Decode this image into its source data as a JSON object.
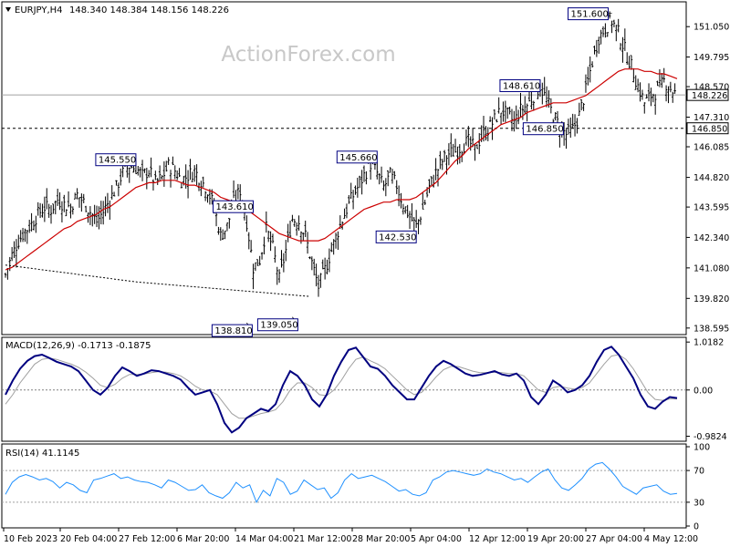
{
  "chart_data": {
    "type": "line",
    "watermark": "ActionForex.com",
    "price_panel": {
      "symbol_label": "EURJPY,H4",
      "ohlc_label": "148.340 148.384 148.156 148.226",
      "ylim": [
        138.4,
        152.0
      ],
      "y_ticks": [
        151.05,
        149.795,
        148.57,
        147.31,
        146.085,
        144.82,
        143.595,
        142.34,
        141.08,
        139.82,
        138.595
      ],
      "current_price": 148.226,
      "current_price_label": "148.226",
      "support_level": 146.85,
      "support_label": "146.850",
      "close_series": [
        140.8,
        141.6,
        142.2,
        142.6,
        142.9,
        143.3,
        143.6,
        143.5,
        143.9,
        143.7,
        143.6,
        144.1,
        143.8,
        143.4,
        143.0,
        143.4,
        143.9,
        144.4,
        145.0,
        145.3,
        145.2,
        144.9,
        145.1,
        144.6,
        144.8,
        145.3,
        145.1,
        144.7,
        144.9,
        145.1,
        144.7,
        144.3,
        143.6,
        142.4,
        142.8,
        143.8,
        144.3,
        143.0,
        141.1,
        141.4,
        142.7,
        141.9,
        140.6,
        141.8,
        143.1,
        143.0,
        142.4,
        141.3,
        140.3,
        141.0,
        141.8,
        142.6,
        143.3,
        143.9,
        144.4,
        144.9,
        145.4,
        145.0,
        144.4,
        144.9,
        144.5,
        143.7,
        143.2,
        142.8,
        143.5,
        144.4,
        145.0,
        145.5,
        145.8,
        145.9,
        146.1,
        146.3,
        146.0,
        146.5,
        146.8,
        147.2,
        147.6,
        147.4,
        147.1,
        147.6,
        147.8,
        148.2,
        148.6,
        148.0,
        147.4,
        146.9,
        146.6,
        146.8,
        147.4,
        148.4,
        149.6,
        150.6,
        151.0,
        151.3,
        150.8,
        150.1,
        149.4,
        148.6,
        147.9,
        148.2,
        148.4,
        148.8,
        148.5,
        148.2
      ],
      "ma_series": [
        141.0,
        141.1,
        141.3,
        141.5,
        141.7,
        141.9,
        142.1,
        142.3,
        142.5,
        142.7,
        142.8,
        143.0,
        143.1,
        143.2,
        143.3,
        143.5,
        143.6,
        143.8,
        144.0,
        144.2,
        144.4,
        144.5,
        144.6,
        144.6,
        144.7,
        144.7,
        144.7,
        144.6,
        144.5,
        144.5,
        144.4,
        144.3,
        144.2,
        144.0,
        143.9,
        143.8,
        143.7,
        143.5,
        143.3,
        143.1,
        142.9,
        142.7,
        142.5,
        142.4,
        142.3,
        142.2,
        142.2,
        142.2,
        142.2,
        142.3,
        142.5,
        142.7,
        142.9,
        143.1,
        143.3,
        143.5,
        143.6,
        143.7,
        143.8,
        143.8,
        143.9,
        143.9,
        143.9,
        144.0,
        144.2,
        144.4,
        144.6,
        144.9,
        145.2,
        145.5,
        145.7,
        146.0,
        146.2,
        146.4,
        146.6,
        146.8,
        147.0,
        147.1,
        147.2,
        147.3,
        147.5,
        147.6,
        147.7,
        147.8,
        147.9,
        147.9,
        147.9,
        148.0,
        148.1,
        148.2,
        148.4,
        148.6,
        148.8,
        149.0,
        149.2,
        149.3,
        149.3,
        149.3,
        149.2,
        149.2,
        149.1,
        149.1,
        149.0,
        148.9
      ],
      "long_ma_series": [
        141.2,
        140.5,
        139.9
      ],
      "annotations": [
        {
          "text": "145.550",
          "value": 145.55,
          "index": 20
        },
        {
          "text": "143.610",
          "value": 143.61,
          "index": 38
        },
        {
          "text": "138.810",
          "value": 138.81,
          "index": 37
        },
        {
          "text": "139.050",
          "value": 139.05,
          "index": 44
        },
        {
          "text": "145.660",
          "value": 145.66,
          "index": 57
        },
        {
          "text": "142.530",
          "value": 142.53,
          "index": 63
        },
        {
          "text": "148.610",
          "value": 148.61,
          "index": 82
        },
        {
          "text": "146.850",
          "value": 146.85,
          "index": 85
        },
        {
          "text": "151.600",
          "value": 151.6,
          "index": 93
        }
      ],
      "colors": {
        "bars": "#000000",
        "ma": "#cc0000",
        "long_ma": "#000000"
      }
    },
    "macd_panel": {
      "label": "MACD(12,26,9) -0.1713 -0.1875",
      "ylim": [
        -1.05,
        1.08
      ],
      "y_ticks": [
        1.0182,
        0.0,
        -0.9824
      ],
      "y_tick_labels": [
        "1.0182",
        "0.00",
        "-0.9824"
      ],
      "macd_series": [
        -0.1,
        0.2,
        0.45,
        0.62,
        0.72,
        0.75,
        0.68,
        0.6,
        0.55,
        0.5,
        0.4,
        0.2,
        0.0,
        -0.1,
        0.05,
        0.3,
        0.48,
        0.4,
        0.3,
        0.35,
        0.42,
        0.4,
        0.35,
        0.3,
        0.22,
        0.05,
        -0.1,
        -0.05,
        0.0,
        -0.3,
        -0.7,
        -0.9,
        -0.8,
        -0.6,
        -0.5,
        -0.4,
        -0.45,
        -0.3,
        0.1,
        0.4,
        0.3,
        0.1,
        -0.2,
        -0.35,
        -0.1,
        0.3,
        0.6,
        0.85,
        0.9,
        0.7,
        0.5,
        0.45,
        0.3,
        0.1,
        -0.05,
        -0.2,
        -0.2,
        0.05,
        0.3,
        0.5,
        0.62,
        0.55,
        0.45,
        0.35,
        0.3,
        0.32,
        0.36,
        0.4,
        0.33,
        0.3,
        0.35,
        0.2,
        -0.15,
        -0.3,
        -0.1,
        0.2,
        0.1,
        -0.05,
        0.0,
        0.1,
        0.3,
        0.6,
        0.85,
        0.92,
        0.75,
        0.5,
        0.25,
        -0.1,
        -0.35,
        -0.4,
        -0.25,
        -0.15,
        -0.17
      ],
      "signal_series": [
        -0.3,
        -0.1,
        0.15,
        0.35,
        0.55,
        0.65,
        0.68,
        0.65,
        0.6,
        0.55,
        0.48,
        0.38,
        0.25,
        0.1,
        0.05,
        0.12,
        0.25,
        0.33,
        0.33,
        0.34,
        0.37,
        0.39,
        0.38,
        0.35,
        0.3,
        0.2,
        0.08,
        0.0,
        -0.02,
        -0.1,
        -0.3,
        -0.5,
        -0.6,
        -0.6,
        -0.55,
        -0.5,
        -0.47,
        -0.42,
        -0.25,
        0.0,
        0.15,
        0.15,
        0.05,
        -0.1,
        -0.12,
        0.0,
        0.2,
        0.45,
        0.65,
        0.7,
        0.62,
        0.55,
        0.45,
        0.3,
        0.15,
        0.0,
        -0.1,
        -0.05,
        0.1,
        0.28,
        0.43,
        0.5,
        0.5,
        0.45,
        0.4,
        0.37,
        0.37,
        0.38,
        0.37,
        0.35,
        0.35,
        0.3,
        0.15,
        0.0,
        -0.05,
        0.05,
        0.08,
        0.04,
        0.02,
        0.05,
        0.15,
        0.35,
        0.55,
        0.72,
        0.75,
        0.65,
        0.45,
        0.2,
        -0.05,
        -0.2,
        -0.22,
        -0.19,
        -0.19
      ],
      "colors": {
        "macd": "#000080",
        "signal": "#a0a0a0",
        "zero": "#808080"
      }
    },
    "rsi_panel": {
      "label": "RSI(14) 41.1145",
      "ylim": [
        0,
        100
      ],
      "y_ticks": [
        100,
        70,
        30,
        0
      ],
      "levels": [
        70,
        30
      ],
      "rsi_series": [
        40,
        55,
        62,
        65,
        62,
        58,
        60,
        56,
        48,
        55,
        52,
        45,
        42,
        58,
        60,
        63,
        66,
        60,
        62,
        58,
        56,
        55,
        52,
        48,
        58,
        55,
        50,
        45,
        46,
        52,
        42,
        38,
        35,
        42,
        55,
        48,
        52,
        30,
        45,
        38,
        60,
        55,
        40,
        44,
        58,
        52,
        46,
        48,
        35,
        42,
        58,
        66,
        60,
        62,
        64,
        60,
        56,
        50,
        44,
        46,
        40,
        38,
        42,
        58,
        62,
        68,
        70,
        68,
        66,
        64,
        66,
        72,
        68,
        66,
        62,
        58,
        60,
        55,
        62,
        68,
        72,
        58,
        48,
        45,
        52,
        60,
        72,
        78,
        80,
        72,
        62,
        50,
        45,
        40,
        48,
        50,
        52,
        44,
        40,
        41
      ],
      "colors": {
        "rsi": "#1e90ff",
        "levels": "#a0a0a0"
      }
    },
    "x_tick_labels": [
      "10 Feb 2023",
      "20 Feb 04:00",
      "27 Feb 12:00",
      "6 Mar 20:00",
      "14 Mar 04:00",
      "21 Mar 12:00",
      "28 Mar 20:00",
      "5 Apr 04:00",
      "12 Apr 12:00",
      "19 Apr 20:00",
      "27 Apr 04:00",
      "4 May 12:00"
    ]
  }
}
